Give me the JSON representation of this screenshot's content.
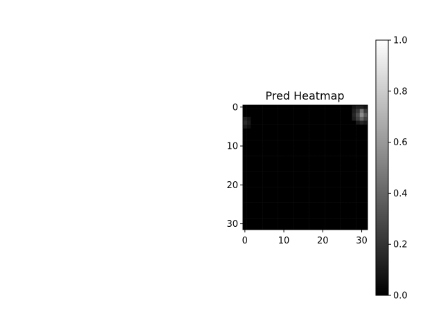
{
  "chart_data": {
    "type": "heatmap",
    "title": "Pred Heatmap",
    "colormap": "gray",
    "grid": false,
    "rows": 32,
    "cols": 32,
    "x_ticks": [
      0,
      10,
      20,
      30
    ],
    "y_ticks": [
      0,
      10,
      20,
      30
    ],
    "x_tick_labels": [
      "0",
      "10",
      "20",
      "30"
    ],
    "y_tick_labels": [
      "0",
      "10",
      "20",
      "30"
    ],
    "colorbar": {
      "range": [
        0.0,
        1.0
      ],
      "ticks": [
        0.0,
        0.2,
        0.4,
        0.6,
        0.8,
        1.0
      ],
      "tick_labels": [
        "0.0",
        "0.2",
        "0.4",
        "0.6",
        "0.8",
        "1.0"
      ]
    },
    "background_value": 0.0,
    "hot_cells": [
      {
        "row": 0,
        "col": 28,
        "value": 0.08
      },
      {
        "row": 0,
        "col": 29,
        "value": 0.12
      },
      {
        "row": 0,
        "col": 30,
        "value": 0.12
      },
      {
        "row": 0,
        "col": 31,
        "value": 0.08
      },
      {
        "row": 1,
        "col": 28,
        "value": 0.12
      },
      {
        "row": 1,
        "col": 29,
        "value": 0.22
      },
      {
        "row": 1,
        "col": 30,
        "value": 0.45
      },
      {
        "row": 1,
        "col": 31,
        "value": 0.22
      },
      {
        "row": 2,
        "col": 28,
        "value": 0.15
      },
      {
        "row": 2,
        "col": 29,
        "value": 0.3
      },
      {
        "row": 2,
        "col": 30,
        "value": 0.55
      },
      {
        "row": 2,
        "col": 31,
        "value": 0.35
      },
      {
        "row": 3,
        "col": 28,
        "value": 0.12
      },
      {
        "row": 3,
        "col": 29,
        "value": 0.25
      },
      {
        "row": 3,
        "col": 30,
        "value": 0.4
      },
      {
        "row": 3,
        "col": 31,
        "value": 0.25
      },
      {
        "row": 4,
        "col": 29,
        "value": 0.1
      },
      {
        "row": 4,
        "col": 30,
        "value": 0.15
      },
      {
        "row": 4,
        "col": 31,
        "value": 0.1
      },
      {
        "row": 3,
        "col": 0,
        "value": 0.12
      },
      {
        "row": 3,
        "col": 1,
        "value": 0.08
      },
      {
        "row": 4,
        "col": 0,
        "value": 0.16
      },
      {
        "row": 4,
        "col": 1,
        "value": 0.1
      },
      {
        "row": 5,
        "col": 0,
        "value": 0.1
      },
      {
        "row": 5,
        "col": 1,
        "value": 0.06
      }
    ]
  }
}
